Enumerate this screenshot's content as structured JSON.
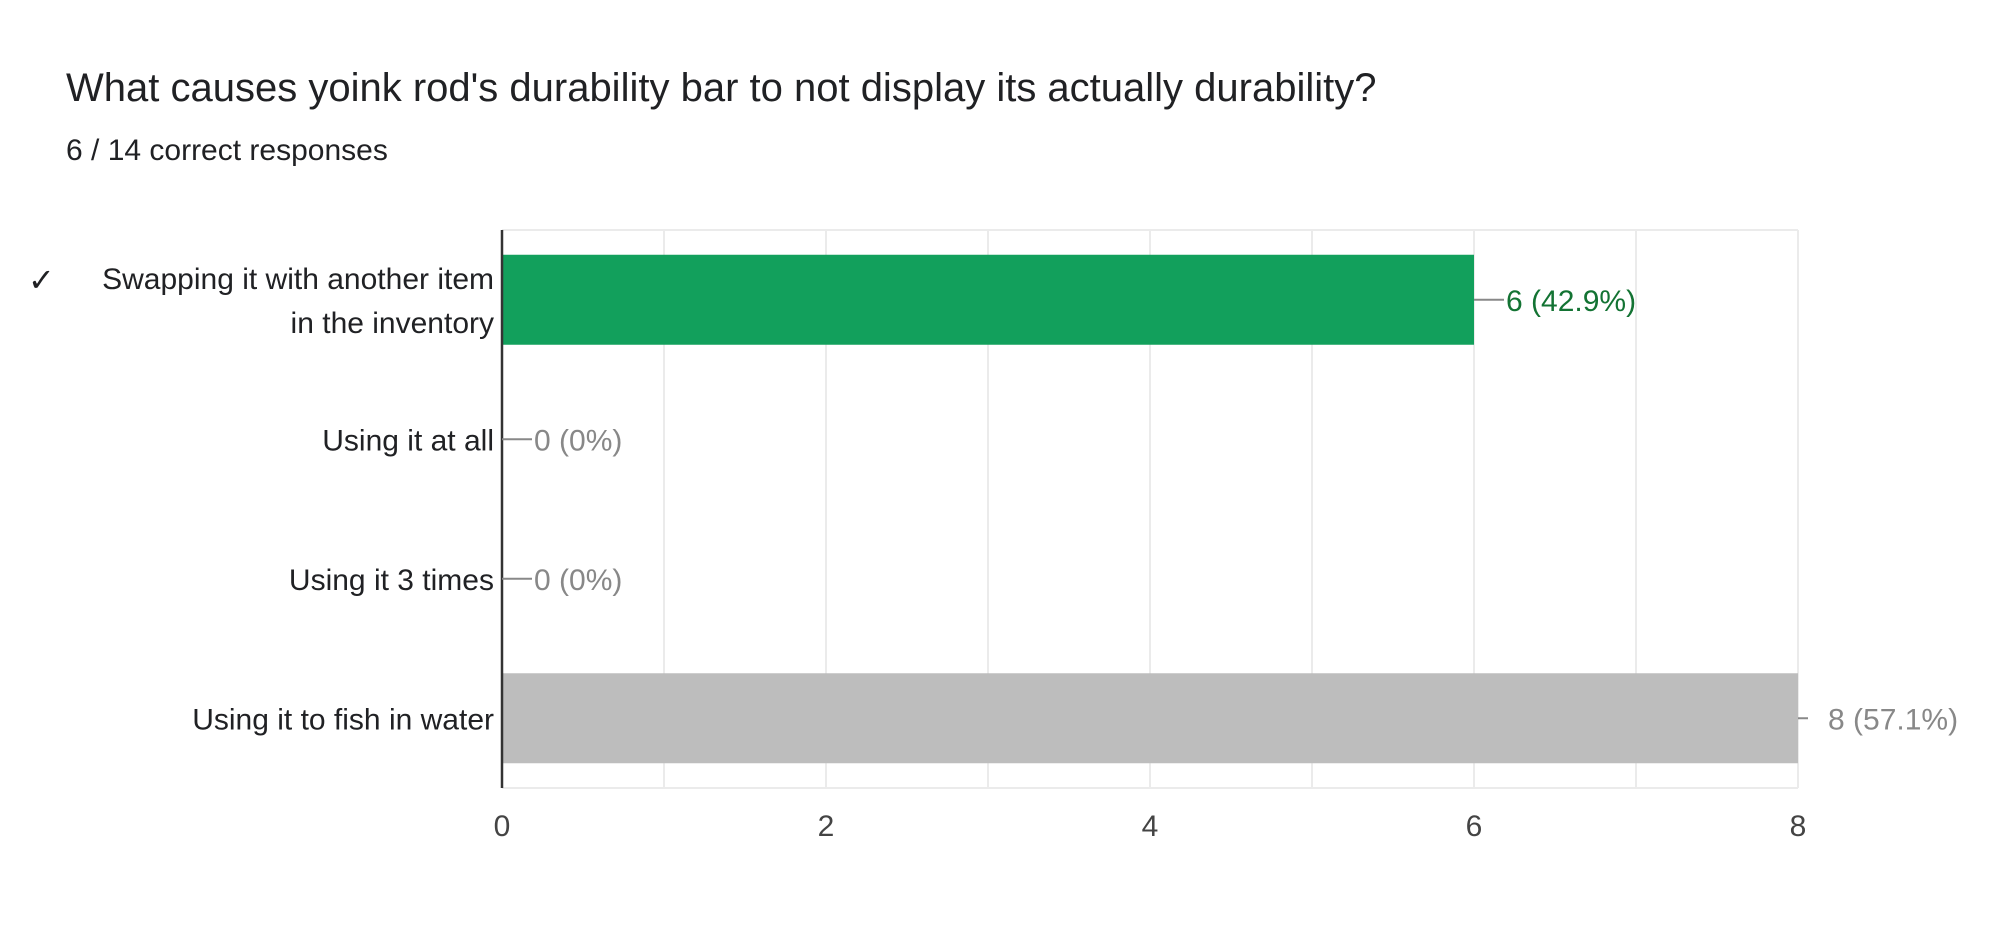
{
  "question": {
    "title": "What causes yoink rod's durability bar to not display its actually durability?",
    "summary": "6 / 14 correct responses"
  },
  "chart_data": {
    "type": "bar",
    "orientation": "horizontal",
    "categories": [
      [
        "Swapping it with another item",
        "in the inventory"
      ],
      [
        "Using it at all"
      ],
      [
        "Using it 3 times"
      ],
      [
        "Using it to fish in water"
      ]
    ],
    "values": [
      6,
      0,
      0,
      8
    ],
    "value_labels": [
      "6 (42.9%)",
      "0 (0%)",
      "0 (0%)",
      "8 (57.1%)"
    ],
    "correct": [
      true,
      false,
      false,
      false
    ],
    "correct_mark": "✓",
    "xlim": [
      0,
      8
    ],
    "x_ticks": [
      0,
      2,
      4,
      6,
      8
    ],
    "grid": true,
    "colors": {
      "correct_bar": "#12a05c",
      "correct_label": "#137333",
      "incorrect_bar": "#bdbdbd",
      "incorrect_label": "#888888",
      "grid": "#ebebeb",
      "axis": "#333333",
      "tick_label": "#444444"
    }
  }
}
